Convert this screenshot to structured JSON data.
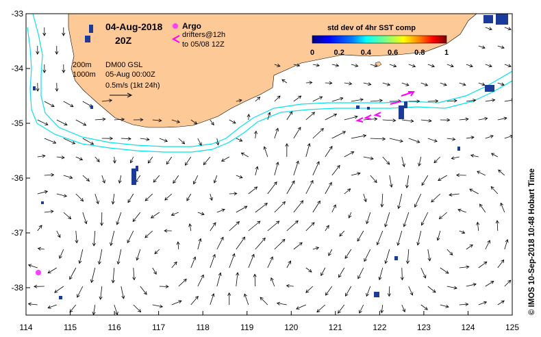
{
  "header": {
    "date": "04-Aug-2018",
    "hour": "20Z",
    "argo_label": "Argo",
    "drifters_label": "drifters@12h",
    "drifters_range": "to 05/08 12Z"
  },
  "legend": {
    "isobath_200": "200m",
    "isobath_1000": "1000m",
    "model_label": "DM00 GSL",
    "model_time": "05-Aug 00:00Z",
    "vector_scale": "0.5m/s (1kt 24h)"
  },
  "colorbar": {
    "title": "std dev of 4hr SST comp",
    "ticks": [
      "0",
      "0.2",
      "0.4",
      "0.6",
      "0.8",
      "1"
    ],
    "colors": [
      "#00007f",
      "#0000ff",
      "#007fff",
      "#00ffff",
      "#7fff7f",
      "#ffff00",
      "#ff7f00",
      "#ff0000",
      "#7f0000"
    ]
  },
  "credit": "© IMOS 10-Sep-2018 10:48 Hobart Time",
  "axes": {
    "x_ticks": [
      "114",
      "115",
      "116",
      "117",
      "118",
      "119",
      "120",
      "121",
      "122",
      "123",
      "124",
      "125"
    ],
    "y_ticks": [
      "-33",
      "-34",
      "-35",
      "-36",
      "-37",
      "-38"
    ],
    "x_range": [
      114,
      125
    ],
    "y_range": [
      -38.5,
      -33
    ]
  },
  "colors": {
    "land": "#fdc996",
    "isobath": "#00e5ee",
    "argo": "#ff3cff",
    "drifter": "#ff00ff",
    "sst_patch": "#1a3a9c"
  },
  "argo_float": {
    "lon": 114.27,
    "lat": -37.72
  }
}
